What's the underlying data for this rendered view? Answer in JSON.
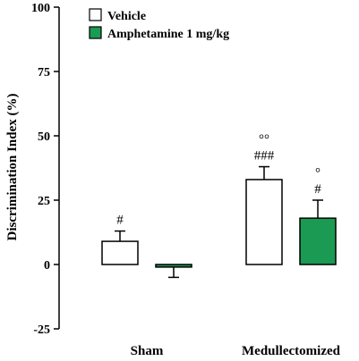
{
  "chart_data": {
    "type": "bar",
    "title": "",
    "ylabel": "Discrimination Index (%)",
    "xlabel": "",
    "ylim": [
      -25,
      100
    ],
    "yticks": [
      -25,
      0,
      25,
      50,
      75,
      100
    ],
    "grid": false,
    "legend_position": "top-left",
    "categories": [
      "Sham",
      "Medullectomized"
    ],
    "series": [
      {
        "name": "Vehicle",
        "color": "#ffffff",
        "values": [
          9,
          33
        ],
        "errors": [
          4,
          5
        ],
        "annotations": [
          "#",
          "###"
        ],
        "top_annotations": [
          "",
          "°°"
        ]
      },
      {
        "name": "Amphetamine 1 mg/kg",
        "color": "#1a9a52",
        "values": [
          -1,
          18
        ],
        "errors": [
          4,
          7
        ],
        "annotations": [
          "",
          "#"
        ],
        "top_annotations": [
          "",
          "°"
        ]
      }
    ]
  }
}
